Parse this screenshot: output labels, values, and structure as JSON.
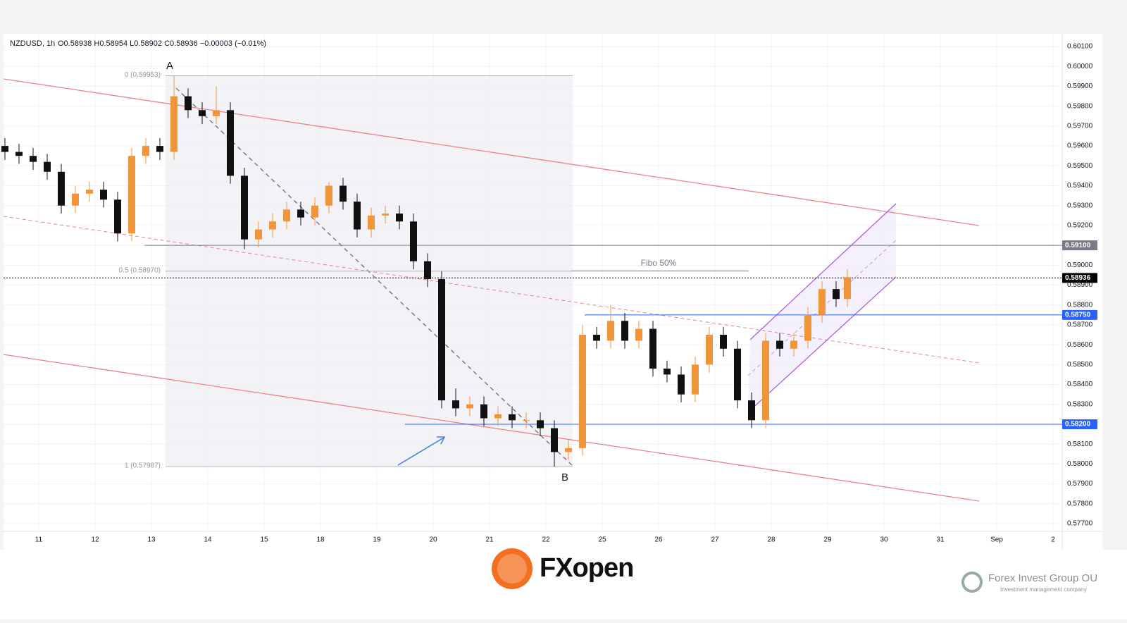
{
  "chart_data": {
    "type": "candlestick",
    "title": "NZDUSD, 1h",
    "ohlc_text": "O0.58938 H0.58954 L0.58902 C0.58936 −0.00003 (−0.01%)",
    "up_color": "#f0953a",
    "down_color": "#111111",
    "x": [
      -0.6,
      -0.35,
      -0.1,
      0.15,
      0.4,
      0.65,
      0.9,
      1.15,
      1.4,
      1.65,
      1.9,
      2.15,
      2.4,
      2.65,
      2.9,
      3.15,
      3.4,
      3.65,
      3.9,
      4.15,
      4.4,
      4.65,
      4.9,
      5.15,
      5.4,
      5.65,
      5.9,
      6.15,
      6.4,
      6.65,
      6.9,
      7.15,
      7.4,
      7.65,
      7.9,
      8.15,
      8.4,
      8.65,
      8.9,
      9.15,
      9.4,
      9.65,
      9.9,
      10.15,
      10.4,
      10.65,
      10.9,
      11.15,
      11.4,
      11.65,
      11.9,
      12.15,
      12.4,
      12.65,
      12.9,
      13.15,
      13.4,
      13.65,
      13.9,
      14.15,
      14.35
    ],
    "open": [
      0.596,
      0.5957,
      0.5955,
      0.5952,
      0.5947,
      0.593,
      0.5936,
      0.5938,
      0.5933,
      0.5916,
      0.5955,
      0.596,
      0.5957,
      0.5985,
      0.5978,
      0.5975,
      0.5978,
      0.5945,
      0.5913,
      0.5918,
      0.5922,
      0.5928,
      0.5924,
      0.593,
      0.594,
      0.5932,
      0.5918,
      0.5925,
      0.5926,
      0.5922,
      0.5902,
      0.5893,
      0.5832,
      0.5828,
      0.583,
      0.5823,
      0.5825,
      0.5822,
      0.5822,
      0.5818,
      0.5806,
      0.5808,
      0.5865,
      0.5862,
      0.5872,
      0.5862,
      0.5868,
      0.5848,
      0.5845,
      0.5835,
      0.585,
      0.5865,
      0.5858,
      0.5832,
      0.5822,
      0.5862,
      0.5858,
      0.5862,
      0.5875,
      0.5888,
      0.5883
    ],
    "high": [
      0.5964,
      0.5961,
      0.5959,
      0.5956,
      0.5951,
      0.594,
      0.5942,
      0.5942,
      0.5937,
      0.5959,
      0.5964,
      0.5964,
      0.59953,
      0.5989,
      0.5982,
      0.599,
      0.5982,
      0.5949,
      0.5922,
      0.5926,
      0.5932,
      0.5932,
      0.5934,
      0.5942,
      0.5944,
      0.5936,
      0.5929,
      0.593,
      0.593,
      0.5926,
      0.5906,
      0.5897,
      0.5838,
      0.5834,
      0.5834,
      0.5829,
      0.5829,
      0.5826,
      0.5826,
      0.5822,
      0.5812,
      0.587,
      0.5869,
      0.588,
      0.5876,
      0.5872,
      0.5872,
      0.5852,
      0.5849,
      0.5854,
      0.5869,
      0.5869,
      0.5862,
      0.5836,
      0.5866,
      0.5866,
      0.5866,
      0.5879,
      0.5892,
      0.5892,
      0.5898
    ],
    "low": [
      0.5953,
      0.5951,
      0.5948,
      0.5943,
      0.5926,
      0.5926,
      0.5932,
      0.5929,
      0.5912,
      0.5912,
      0.5951,
      0.5953,
      0.5953,
      0.5974,
      0.5971,
      0.5971,
      0.5941,
      0.5908,
      0.5909,
      0.5914,
      0.5918,
      0.592,
      0.592,
      0.5926,
      0.5928,
      0.5914,
      0.5914,
      0.5921,
      0.5918,
      0.5898,
      0.5889,
      0.5828,
      0.5824,
      0.5824,
      0.5819,
      0.5819,
      0.5818,
      0.5818,
      0.5814,
      0.57987,
      0.5802,
      0.5804,
      0.5858,
      0.5858,
      0.5858,
      0.5858,
      0.5844,
      0.5841,
      0.5831,
      0.5831,
      0.5846,
      0.5854,
      0.5828,
      0.5818,
      0.5818,
      0.5854,
      0.5854,
      0.5858,
      0.5871,
      0.5879,
      0.5879
    ],
    "close": [
      0.5957,
      0.5955,
      0.5952,
      0.5947,
      0.593,
      0.5936,
      0.5938,
      0.5933,
      0.5916,
      0.5955,
      0.596,
      0.5957,
      0.5985,
      0.5978,
      0.5975,
      0.5978,
      0.5945,
      0.5913,
      0.5918,
      0.5922,
      0.5928,
      0.5924,
      0.593,
      0.594,
      0.5932,
      0.5918,
      0.5925,
      0.5926,
      0.5922,
      0.5902,
      0.5893,
      0.5832,
      0.5828,
      0.583,
      0.5823,
      0.5825,
      0.5822,
      0.5822,
      0.5818,
      0.5806,
      0.5808,
      0.5865,
      0.5862,
      0.5872,
      0.5862,
      0.5868,
      0.5848,
      0.5845,
      0.5835,
      0.585,
      0.5865,
      0.5858,
      0.5832,
      0.5822,
      0.5862,
      0.5858,
      0.5862,
      0.5875,
      0.5888,
      0.5883,
      0.5894
    ],
    "xlim": [
      -0.625,
      18.1625
    ],
    "xticks": [
      {
        "value": 0,
        "label": "11"
      },
      {
        "value": 1,
        "label": "12"
      },
      {
        "value": 2,
        "label": "13"
      },
      {
        "value": 3,
        "label": "14"
      },
      {
        "value": 4,
        "label": "15"
      },
      {
        "value": 5,
        "label": "18"
      },
      {
        "value": 6,
        "label": "19"
      },
      {
        "value": 7,
        "label": "20"
      },
      {
        "value": 8,
        "label": "21"
      },
      {
        "value": 9,
        "label": "22"
      },
      {
        "value": 10,
        "label": "25"
      },
      {
        "value": 11,
        "label": "26"
      },
      {
        "value": 12,
        "label": "27"
      },
      {
        "value": 13,
        "label": "28"
      },
      {
        "value": 14,
        "label": "29"
      },
      {
        "value": 15,
        "label": "30"
      },
      {
        "value": 16,
        "label": "31"
      },
      {
        "value": 17,
        "label": "Sep"
      },
      {
        "value": 18,
        "label": "2"
      }
    ],
    "ylim": [
      0.57668,
      0.60157
    ],
    "yticks": [
      {
        "value": 0.601,
        "label": "0.60100"
      },
      {
        "value": 0.6,
        "label": "0.60000"
      },
      {
        "value": 0.599,
        "label": "0.59900"
      },
      {
        "value": 0.598,
        "label": "0.59800"
      },
      {
        "value": 0.597,
        "label": "0.59700"
      },
      {
        "value": 0.596,
        "label": "0.59600"
      },
      {
        "value": 0.595,
        "label": "0.59500"
      },
      {
        "value": 0.594,
        "label": "0.59400"
      },
      {
        "value": 0.593,
        "label": "0.59300"
      },
      {
        "value": 0.592,
        "label": "0.59200"
      },
      {
        "value": 0.591,
        "label": "0.59100"
      },
      {
        "value": 0.59,
        "label": "0.59000"
      },
      {
        "value": 0.589,
        "label": "0.58900"
      },
      {
        "value": 0.588,
        "label": "0.58800"
      },
      {
        "value": 0.587,
        "label": "0.58700"
      },
      {
        "value": 0.586,
        "label": "0.58600"
      },
      {
        "value": 0.585,
        "label": "0.58500"
      },
      {
        "value": 0.584,
        "label": "0.58400"
      },
      {
        "value": 0.583,
        "label": "0.58300"
      },
      {
        "value": 0.582,
        "label": "0.58200"
      },
      {
        "value": 0.581,
        "label": "0.58100"
      },
      {
        "value": 0.58,
        "label": "0.58000"
      },
      {
        "value": 0.579,
        "label": "0.57900"
      },
      {
        "value": 0.578,
        "label": "0.57800"
      },
      {
        "value": 0.577,
        "label": "0.57700"
      }
    ],
    "grid": true,
    "levels": [
      {
        "value": 0.591,
        "label": "0.59100",
        "color": "#787b86"
      },
      {
        "value": 0.58936,
        "label": "0.58936",
        "color": "#000000"
      },
      {
        "value": 0.5875,
        "label": "0.58750",
        "color": "#2962ff"
      },
      {
        "value": 0.582,
        "label": "0.58200",
        "color": "#2962ff"
      }
    ],
    "fibonacci": {
      "levels": [
        0.59953,
        0.5897,
        0.57987
      ],
      "labels": [
        "0 (0.59953)",
        "0.5 (0.58970)",
        "1 (0.57987)"
      ],
      "note": "Fibo 50%"
    },
    "point_labels": [
      "A",
      "B"
    ]
  },
  "footer": {
    "brand": "FXopen",
    "company": "Forex Invest Group OU",
    "tagline": "Investment management company"
  }
}
